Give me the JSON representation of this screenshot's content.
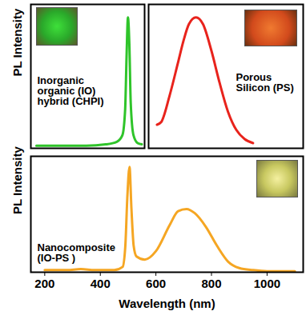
{
  "chart_data": [
    {
      "type": "line",
      "y_label": "PL Intensity",
      "annotation": "Inorganic\norganic (IO)\nhybrid (CHPI)",
      "x": [
        170,
        250,
        350,
        420,
        460,
        480,
        490,
        495,
        500,
        505,
        510,
        520,
        535,
        550
      ],
      "values": [
        0.02,
        0.02,
        0.02,
        0.03,
        0.05,
        0.1,
        0.3,
        0.7,
        1.0,
        0.8,
        0.35,
        0.1,
        0.04,
        0.03
      ],
      "color": "#2fc42a",
      "xlim": [
        150,
        560
      ],
      "ylim": [
        0,
        1.1
      ],
      "tick_labels": false
    },
    {
      "type": "line",
      "annotation": "Porous\nSilicon (PS)",
      "x": [
        605,
        620,
        650,
        680,
        700,
        720,
        745,
        770,
        800,
        830,
        860,
        890,
        920,
        950
      ],
      "values": [
        0.18,
        0.2,
        0.4,
        0.65,
        0.82,
        0.95,
        1.0,
        0.95,
        0.75,
        0.5,
        0.28,
        0.14,
        0.07,
        0.04
      ],
      "color": "#e8231c",
      "xlim": [
        575,
        1130
      ],
      "ylim": [
        0,
        1.1
      ],
      "tick_labels": false
    },
    {
      "type": "line",
      "y_label": "PL Intensity",
      "x_label": "Wavelength (nm)",
      "annotation": "Nanocomposite\n(IO-PS )",
      "x": [
        200,
        280,
        330,
        380,
        450,
        480,
        490,
        497,
        505,
        512,
        520,
        530,
        560,
        600,
        650,
        680,
        710,
        740,
        780,
        820,
        860,
        900,
        950,
        1000,
        1100
      ],
      "values": [
        0.02,
        0.02,
        0.03,
        0.02,
        0.02,
        0.05,
        0.25,
        0.7,
        1.0,
        0.6,
        0.25,
        0.15,
        0.12,
        0.2,
        0.45,
        0.58,
        0.6,
        0.56,
        0.43,
        0.25,
        0.1,
        0.04,
        0.02,
        0.01,
        0.01
      ],
      "color": "#f5a623",
      "xlim": [
        150,
        1130
      ],
      "xticks": [
        200,
        400,
        600,
        800,
        1000
      ],
      "ylim": [
        0,
        1.1
      ],
      "tick_labels": "x"
    }
  ]
}
